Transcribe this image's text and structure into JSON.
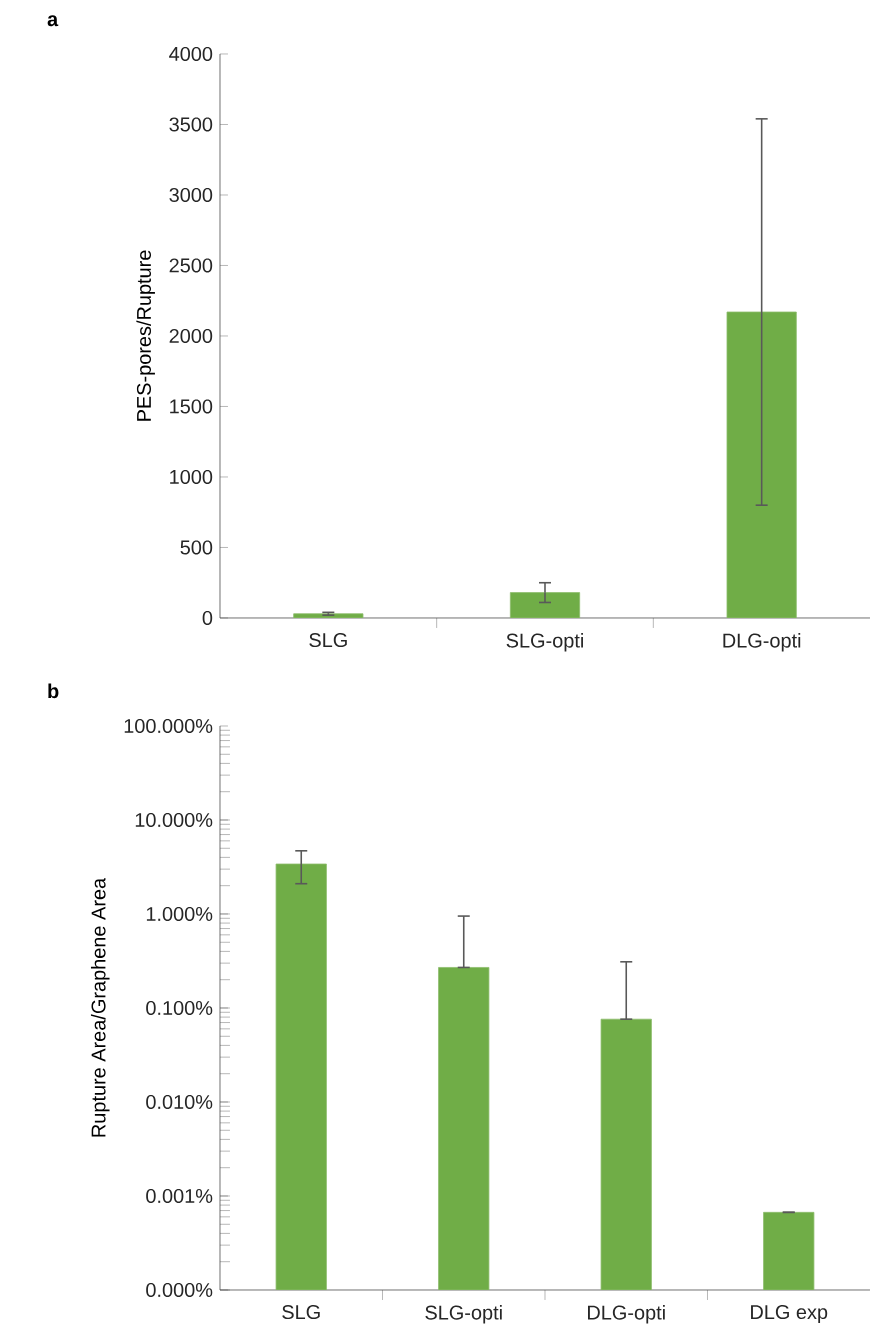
{
  "chart_data": [
    {
      "type": "bar",
      "title": "a",
      "ylabel": "PES-pores/Rupture",
      "categories": [
        "SLG",
        "SLG-opti",
        "DLG-opti"
      ],
      "color": "#70ad47",
      "values": [
        30,
        180,
        2170
      ],
      "errors": [
        10,
        70,
        1370
      ],
      "ylim": [
        0,
        4000
      ],
      "yticks": [
        0,
        500,
        1000,
        1500,
        2000,
        2500,
        3000,
        3500,
        4000
      ],
      "grid": false
    },
    {
      "type": "bar",
      "title": "b",
      "ylabel": "Rupture Area/Graphene Area",
      "categories": [
        "SLG",
        "SLG-opti",
        "DLG-opti",
        "DLG exp"
      ],
      "color": "#70ad47",
      "values": [
        3.4,
        0.27,
        0.076,
        0.00067
      ],
      "errors": [
        [
          2.1,
          4.7
        ],
        [
          0.27,
          0.95
        ],
        [
          0.076,
          0.31
        ],
        null
      ],
      "log": true,
      "ylim": [
        0.0001,
        100
      ],
      "yticks": [
        {
          "value": 0.0001,
          "label": "0.000%"
        },
        {
          "value": 0.001,
          "label": "0.001%"
        },
        {
          "value": 0.01,
          "label": "0.010%"
        },
        {
          "value": 0.1,
          "label": "0.100%"
        },
        {
          "value": 1,
          "label": "1.000%"
        },
        {
          "value": 10,
          "label": "10.000%"
        },
        {
          "value": 100,
          "label": "100.000%"
        }
      ],
      "grid": false
    }
  ]
}
